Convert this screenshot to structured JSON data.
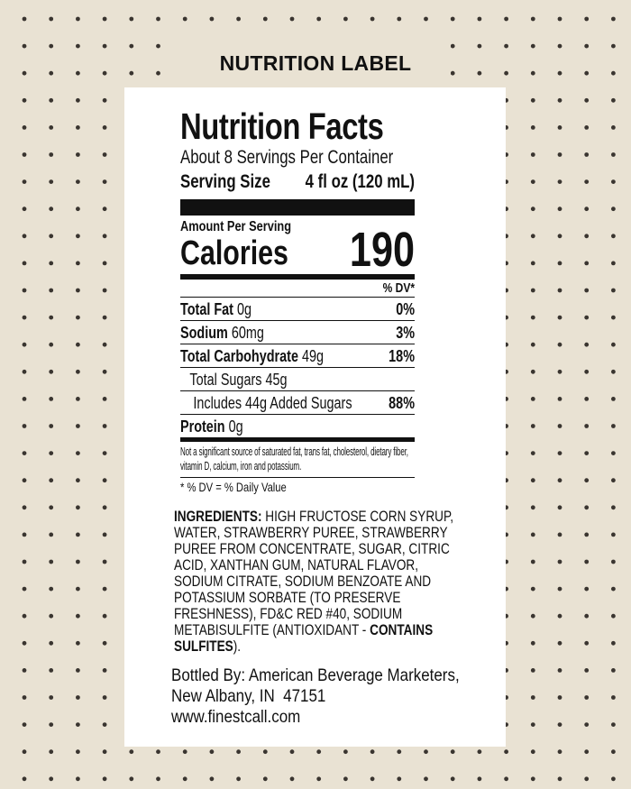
{
  "header": {
    "title": "NUTRITION LABEL"
  },
  "colors": {
    "background": "#e9e2d3",
    "dots": "#3a3530",
    "card": "#ffffff",
    "text": "#111111"
  },
  "label": {
    "heading": "Nutrition Facts",
    "servings": "About 8 Servings Per Container",
    "serving_size_label": "Serving Size",
    "serving_size_value": "4 fl oz (120 mL)",
    "amount_per_serving": "Amount Per Serving",
    "calories_label": "Calories",
    "calories_value": "190",
    "dv_header": "% DV*",
    "nutrients": [
      {
        "name": "Total Fat",
        "amount": "0g",
        "dv": "0%"
      },
      {
        "name": "Sodium",
        "amount": "60mg",
        "dv": "3%"
      },
      {
        "name": "Total Carbohydrate",
        "amount": "49g",
        "dv": "18%"
      },
      {
        "name": "Total Sugars",
        "amount": "45g",
        "dv": ""
      },
      {
        "name": "Includes 44g Added Sugars",
        "amount": "",
        "dv": "88%"
      },
      {
        "name": "Protein",
        "amount": "0g",
        "dv": ""
      }
    ],
    "footnote": "Not a significant source of saturated fat, trans fat, cholesterol, dietary fiber, vitamin D, calcium, iron and potassium.",
    "dv_note": "* % DV = % Daily Value"
  },
  "ingredients": {
    "label": "INGREDIENTS:",
    "text": " HIGH FRUCTOSE CORN SYRUP, WATER, STRAWBERRY PUREE, STRAWBERRY PUREE FROM CONCENTRATE, SUGAR, CITRIC ACID, XANTHAN GUM, NATURAL FLAVOR, SODIUM CITRATE, SODIUM BENZOATE AND POTASSIUM SORBATE (TO PRESERVE FRESHNESS), FD&C RED #40, SODIUM METABISULFITE (ANTIOXIDANT - ",
    "warning": "CONTAINS SULFITES",
    "end": ")."
  },
  "bottler": {
    "line1": "Bottled By: American Beverage Marketers,",
    "line2": "New Albany, IN  47151",
    "website": "www.finestcall.com"
  }
}
